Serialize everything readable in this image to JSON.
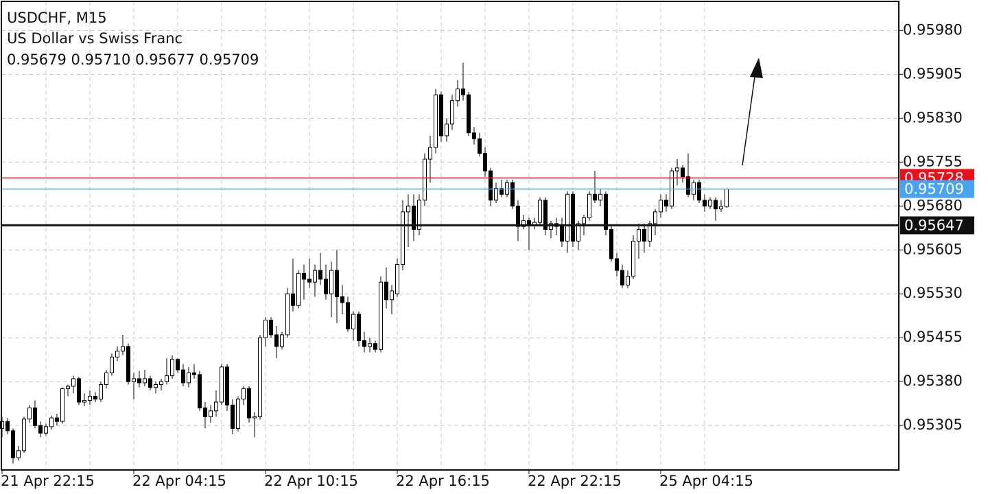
{
  "chart_data": {
    "type": "candlestick",
    "title": "USDCHF, M15",
    "subtitle": "US Dollar vs Swiss Franc",
    "info": "0.95679 0.95710 0.95677 0.95709",
    "categories": [
      "21 Apr 22:15",
      null,
      null,
      null,
      null,
      null,
      null,
      null,
      null,
      null,
      null,
      null,
      null,
      null,
      null,
      null,
      null,
      null,
      null,
      null,
      null,
      null,
      null,
      null,
      "22 Apr 04:15",
      null,
      null,
      null,
      null,
      null,
      null,
      null,
      null,
      null,
      null,
      null,
      null,
      null,
      null,
      null,
      null,
      null,
      null,
      null,
      null,
      null,
      null,
      null,
      "22 Apr 10:15",
      null,
      null,
      null,
      null,
      null,
      null,
      null,
      null,
      null,
      null,
      null,
      null,
      null,
      null,
      null,
      null,
      null,
      null,
      null,
      null,
      null,
      null,
      null,
      "22 Apr 16:15",
      null,
      null,
      null,
      null,
      null,
      null,
      null,
      null,
      null,
      null,
      null,
      null,
      null,
      null,
      null,
      null,
      null,
      null,
      null,
      null,
      null,
      null,
      null,
      "22 Apr 22:15",
      null,
      null,
      null,
      null,
      null,
      null,
      null,
      null,
      null,
      null,
      null,
      null,
      null,
      null,
      null,
      null,
      null,
      null,
      null,
      null,
      null,
      null,
      null,
      "25 Apr 04:15",
      null,
      null,
      null,
      null,
      null,
      null,
      null,
      null,
      null,
      null,
      null,
      null
    ],
    "open": [
      0.953,
      0.95312,
      0.95296,
      0.9525,
      0.95262,
      0.95316,
      0.95335,
      0.95305,
      0.95292,
      0.95303,
      0.95318,
      0.95312,
      0.95368,
      0.95372,
      0.95385,
      0.95345,
      0.95348,
      0.95355,
      0.9535,
      0.95375,
      0.95395,
      0.95422,
      0.95432,
      0.9544,
      0.9538,
      0.95385,
      0.95378,
      0.95385,
      0.9537,
      0.95375,
      0.9538,
      0.9539,
      0.95418,
      0.954,
      0.95378,
      0.95395,
      0.95392,
      0.95335,
      0.9532,
      0.9533,
      0.95345,
      0.95405,
      0.9534,
      0.953,
      0.9535,
      0.95368,
      0.95318,
      0.9532,
      0.95455,
      0.95485,
      0.9546,
      0.9544,
      0.9546,
      0.9553,
      0.9551,
      0.95565,
      0.95555,
      0.9555,
      0.9557,
      0.95555,
      0.9553,
      0.9557,
      0.95525,
      0.95515,
      0.9547,
      0.95495,
      0.9545,
      0.9544,
      0.95445,
      0.95435,
      0.9555,
      0.9552,
      0.9553,
      0.9558,
      0.9567,
      0.9568,
      0.9564,
      0.9569,
      0.9576,
      0.9578,
      0.9587,
      0.958,
      0.9582,
      0.9586,
      0.9588,
      0.9587,
      0.95805,
      0.95795,
      0.9577,
      0.9574,
      0.9569,
      0.9571,
      0.957,
      0.9572,
      0.9568,
      0.95645,
      0.95655,
      0.95648,
      0.95652,
      0.9569,
      0.9564,
      0.9565,
      0.95645,
      0.9562,
      0.957,
      0.9562,
      0.9565,
      0.9566,
      0.957,
      0.9569,
      0.957,
      0.9564,
      0.9559,
      0.9557,
      0.95545,
      0.9556,
      0.9562,
      0.9564,
      0.9562,
      0.9565,
      0.9567,
      0.9569,
      0.9568,
      0.9574,
      0.95745,
      0.9573,
      0.957,
      0.9572,
      0.9569,
      0.9568,
      0.9569,
      0.95675,
      0.95679
    ],
    "high": [
      0.9532,
      0.95318,
      0.953,
      0.9527,
      0.9532,
      0.9534,
      0.95348,
      0.95312,
      0.95308,
      0.95322,
      0.95325,
      0.9537,
      0.95375,
      0.9539,
      0.95388,
      0.9536,
      0.95365,
      0.95362,
      0.9538,
      0.954,
      0.95428,
      0.9544,
      0.9546,
      0.95445,
      0.95395,
      0.95398,
      0.954,
      0.9539,
      0.9538,
      0.95385,
      0.9542,
      0.95425,
      0.9542,
      0.9541,
      0.95405,
      0.9541,
      0.95398,
      0.95345,
      0.9534,
      0.95365,
      0.9541,
      0.9541,
      0.9535,
      0.95355,
      0.95372,
      0.95372,
      0.95328,
      0.9546,
      0.9549,
      0.9549,
      0.95475,
      0.95465,
      0.9554,
      0.9559,
      0.9557,
      0.9558,
      0.9559,
      0.9558,
      0.956,
      0.9558,
      0.95585,
      0.95605,
      0.95545,
      0.95525,
      0.955,
      0.955,
      0.95465,
      0.95455,
      0.9545,
      0.9556,
      0.95575,
      0.95545,
      0.9559,
      0.9569,
      0.957,
      0.957,
      0.957,
      0.9577,
      0.958,
      0.9588,
      0.95875,
      0.9583,
      0.9587,
      0.95895,
      0.95925,
      0.95875,
      0.95815,
      0.95805,
      0.9578,
      0.95745,
      0.9572,
      0.95725,
      0.95725,
      0.95725,
      0.9569,
      0.95665,
      0.9566,
      0.9566,
      0.95695,
      0.95695,
      0.95655,
      0.9566,
      0.9566,
      0.95705,
      0.95705,
      0.95655,
      0.95665,
      0.95705,
      0.9574,
      0.9571,
      0.95705,
      0.95645,
      0.956,
      0.9558,
      0.9557,
      0.9563,
      0.9565,
      0.9565,
      0.95655,
      0.95675,
      0.957,
      0.957,
      0.95745,
      0.9576,
      0.9575,
      0.9577,
      0.95725,
      0.95725,
      0.957,
      0.95695,
      0.95695,
      0.9569,
      0.9571
    ],
    "low": [
      0.95285,
      0.9529,
      0.9524,
      0.95245,
      0.95258,
      0.9531,
      0.953,
      0.95285,
      0.95288,
      0.95298,
      0.95305,
      0.95308,
      0.95355,
      0.9536,
      0.9534,
      0.95338,
      0.9534,
      0.95345,
      0.95345,
      0.95368,
      0.9539,
      0.95415,
      0.95425,
      0.95375,
      0.9535,
      0.9537,
      0.95372,
      0.95365,
      0.9536,
      0.95365,
      0.95375,
      0.95385,
      0.95395,
      0.95372,
      0.9537,
      0.95385,
      0.9533,
      0.953,
      0.9531,
      0.9532,
      0.9534,
      0.9533,
      0.9529,
      0.95295,
      0.9534,
      0.9531,
      0.95285,
      0.95315,
      0.9544,
      0.95455,
      0.9542,
      0.95435,
      0.95455,
      0.955,
      0.95505,
      0.9552,
      0.9554,
      0.95525,
      0.95545,
      0.9552,
      0.9549,
      0.9548,
      0.95495,
      0.95465,
      0.9545,
      0.9544,
      0.9543,
      0.9543,
      0.9543,
      0.9543,
      0.95505,
      0.95495,
      0.95525,
      0.9557,
      0.9561,
      0.9562,
      0.9563,
      0.9568,
      0.9572,
      0.9577,
      0.9579,
      0.9579,
      0.9581,
      0.9585,
      0.9586,
      0.958,
      0.95785,
      0.95765,
      0.9573,
      0.9568,
      0.95685,
      0.95695,
      0.95695,
      0.95675,
      0.9562,
      0.9564,
      0.95605,
      0.9564,
      0.95645,
      0.9563,
      0.95625,
      0.9563,
      0.9561,
      0.956,
      0.9561,
      0.95605,
      0.9563,
      0.95655,
      0.95685,
      0.9568,
      0.9563,
      0.95585,
      0.9556,
      0.9554,
      0.9554,
      0.95555,
      0.9559,
      0.956,
      0.9561,
      0.9563,
      0.9566,
      0.9567,
      0.95675,
      0.95715,
      0.9572,
      0.95695,
      0.9569,
      0.95685,
      0.9567,
      0.95675,
      0.95655,
      0.9567,
      0.95677
    ],
    "close": [
      0.95312,
      0.95296,
      0.9525,
      0.95262,
      0.95316,
      0.95335,
      0.95305,
      0.95292,
      0.95303,
      0.95318,
      0.95312,
      0.95368,
      0.95372,
      0.95385,
      0.95345,
      0.95348,
      0.95355,
      0.9535,
      0.95375,
      0.95395,
      0.95422,
      0.95432,
      0.9544,
      0.9538,
      0.95385,
      0.95378,
      0.95385,
      0.9537,
      0.95375,
      0.9538,
      0.9539,
      0.95418,
      0.954,
      0.95378,
      0.95395,
      0.95392,
      0.95335,
      0.9532,
      0.9533,
      0.95345,
      0.95405,
      0.9534,
      0.953,
      0.9535,
      0.95368,
      0.95318,
      0.9532,
      0.95455,
      0.95485,
      0.9546,
      0.9544,
      0.9546,
      0.9553,
      0.9551,
      0.95565,
      0.95555,
      0.9555,
      0.9557,
      0.95555,
      0.9553,
      0.9557,
      0.95525,
      0.95515,
      0.9547,
      0.95495,
      0.9545,
      0.9544,
      0.95445,
      0.95435,
      0.9555,
      0.9552,
      0.95535,
      0.9558,
      0.9567,
      0.9568,
      0.9564,
      0.9569,
      0.9576,
      0.9578,
      0.9587,
      0.958,
      0.9582,
      0.9586,
      0.9588,
      0.9587,
      0.95805,
      0.95795,
      0.9577,
      0.9574,
      0.9569,
      0.9571,
      0.957,
      0.9572,
      0.9568,
      0.95645,
      0.95655,
      0.95648,
      0.95652,
      0.9569,
      0.9564,
      0.9565,
      0.95645,
      0.9562,
      0.957,
      0.9562,
      0.9565,
      0.9566,
      0.957,
      0.9569,
      0.957,
      0.9564,
      0.9559,
      0.9557,
      0.95545,
      0.9556,
      0.9562,
      0.9564,
      0.9562,
      0.9565,
      0.9567,
      0.9569,
      0.9568,
      0.9574,
      0.95745,
      0.9573,
      0.957,
      0.9572,
      0.9569,
      0.9568,
      0.9569,
      0.95675,
      0.95679,
      0.95709
    ],
    "up_color": "#ffffff",
    "down_color": "#000000",
    "wick_color": "#000000",
    "ylim": [
      0.95229,
      0.96032
    ],
    "yticks": [
      {
        "value": 0.9598,
        "label": "0.95980"
      },
      0.95905,
      {
        "value": 0.9583,
        "label": "0.95830"
      },
      0.95755,
      {
        "value": 0.9568,
        "label": "0.95680"
      },
      0.95605,
      {
        "value": 0.9553,
        "label": "0.95530"
      },
      0.95455,
      {
        "value": 0.9538,
        "label": "0.95380"
      },
      0.95305
    ],
    "grid": true,
    "hlines": [
      {
        "value": 0.95728,
        "color": "#e8101a"
      },
      {
        "value": 0.95709,
        "color": "#4aa3f0"
      },
      {
        "value": 0.95647,
        "color": "#111111"
      }
    ]
  }
}
